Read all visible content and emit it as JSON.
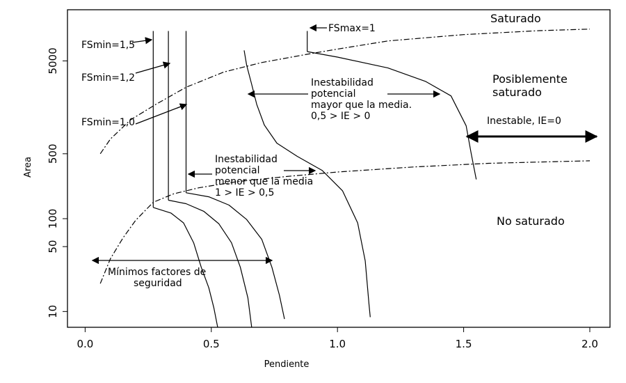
{
  "chart_data": {
    "type": "line",
    "xlabel": "Pendiente",
    "ylabel": "Area",
    "xlim": [
      -0.07,
      2.08
    ],
    "ylim_log10": [
      0.83,
      4.25
    ],
    "y_scale": "log",
    "x_ticks": [
      {
        "value": 0.0,
        "label": "0.0"
      },
      {
        "value": 0.5,
        "label": "0.5"
      },
      {
        "value": 1.0,
        "label": "1.0"
      },
      {
        "value": 1.5,
        "label": "1.5"
      },
      {
        "value": 2.0,
        "label": "2.0"
      }
    ],
    "y_ticks": [
      {
        "value": 10,
        "label": "10"
      },
      {
        "value": 50,
        "label": "50"
      },
      {
        "value": 100,
        "label": "100"
      },
      {
        "value": 500,
        "label": "500"
      },
      {
        "value": 5000,
        "label": "5000"
      }
    ],
    "grid": false,
    "series": [
      {
        "key": "upper-boundary",
        "style": "dash-dot",
        "points": [
          [
            0.06,
            500
          ],
          [
            0.1,
            720
          ],
          [
            0.18,
            1160
          ],
          [
            0.28,
            1700
          ],
          [
            0.4,
            2600
          ],
          [
            0.55,
            3800
          ],
          [
            0.7,
            4800
          ],
          [
            0.88,
            5900
          ],
          [
            1.0,
            6700
          ],
          [
            1.2,
            8200
          ],
          [
            1.5,
            9600
          ],
          [
            1.8,
            10600
          ],
          [
            2.0,
            11000
          ]
        ]
      },
      {
        "key": "lower-boundary",
        "style": "dash-dot",
        "points": [
          [
            0.06,
            20
          ],
          [
            0.1,
            37
          ],
          [
            0.15,
            62
          ],
          [
            0.2,
            96
          ],
          [
            0.27,
            150
          ],
          [
            0.35,
            185
          ],
          [
            0.45,
            215
          ],
          [
            0.6,
            250
          ],
          [
            0.8,
            285
          ],
          [
            1.0,
            318
          ],
          [
            1.3,
            360
          ],
          [
            1.6,
            395
          ],
          [
            2.0,
            420
          ]
        ]
      },
      {
        "key": "fs-1-5-curve",
        "style": "solid",
        "points": [
          [
            0.27,
            132
          ],
          [
            0.34,
            115
          ],
          [
            0.39,
            90
          ],
          [
            0.43,
            55
          ],
          [
            0.46,
            30
          ],
          [
            0.49,
            18
          ],
          [
            0.51,
            11
          ],
          [
            0.525,
            6.8
          ]
        ]
      },
      {
        "key": "fs-1-2-curve",
        "style": "solid",
        "points": [
          [
            0.33,
            158
          ],
          [
            0.4,
            145
          ],
          [
            0.47,
            120
          ],
          [
            0.53,
            88
          ],
          [
            0.58,
            55
          ],
          [
            0.615,
            30
          ],
          [
            0.645,
            14
          ],
          [
            0.66,
            6.8
          ]
        ]
      },
      {
        "key": "fs-1-0-curve",
        "style": "solid",
        "points": [
          [
            0.4,
            190
          ],
          [
            0.49,
            172
          ],
          [
            0.57,
            140
          ],
          [
            0.64,
            98
          ],
          [
            0.7,
            60
          ],
          [
            0.74,
            30
          ],
          [
            0.77,
            15
          ],
          [
            0.79,
            8.3
          ]
        ]
      },
      {
        "key": "fs-max-1-curve",
        "style": "solid",
        "points": [
          [
            0.63,
            6500
          ],
          [
            0.64,
            4500
          ],
          [
            0.66,
            2800
          ],
          [
            0.68,
            1700
          ],
          [
            0.71,
            1020
          ],
          [
            0.76,
            650
          ],
          [
            0.84,
            470
          ],
          [
            0.94,
            330
          ],
          [
            1.02,
            200
          ],
          [
            1.08,
            90
          ],
          [
            1.11,
            35
          ],
          [
            1.125,
            12
          ],
          [
            1.13,
            8.7
          ]
        ]
      },
      {
        "key": "fs-0-curve",
        "style": "solid",
        "points": [
          [
            0.88,
            6300
          ],
          [
            1.0,
            5500
          ],
          [
            1.2,
            4200
          ],
          [
            1.35,
            3000
          ],
          [
            1.45,
            2100
          ],
          [
            1.51,
            1000
          ],
          [
            1.53,
            500
          ],
          [
            1.55,
            265
          ]
        ]
      },
      {
        "key": "fs-min-1-5-vline",
        "style": "solid",
        "points": [
          [
            0.27,
            10500
          ],
          [
            0.27,
            132
          ]
        ]
      },
      {
        "key": "fs-min-1-2-vline",
        "style": "solid",
        "points": [
          [
            0.33,
            10500
          ],
          [
            0.33,
            158
          ]
        ]
      },
      {
        "key": "fs-min-1-0-vline",
        "style": "solid",
        "points": [
          [
            0.4,
            10500
          ],
          [
            0.4,
            190
          ]
        ]
      },
      {
        "key": "fs-max-1-vline",
        "style": "solid",
        "points": [
          [
            0.88,
            10500
          ],
          [
            0.88,
            6300
          ]
        ]
      }
    ],
    "annotations": {
      "saturado": "Saturado",
      "posiblemente_1": "Posiblemente",
      "posiblemente_2": "saturado",
      "no_saturado": "No saturado",
      "inestable": "Inestable, IE=0",
      "fs_max": "FSmax=1",
      "fs_min_15": "FSmin=1,5",
      "fs_min_12": "FSmin=1,2",
      "fs_min_10": "FSmin=1,0",
      "inest_mayor_1": "Inestabilidad",
      "inest_mayor_2": "potencial",
      "inest_mayor_3": "mayor que la media.",
      "inest_mayor_4": "0,5 > IE > 0",
      "inest_menor_1": "Inestabilidad",
      "inest_menor_2": "potencial",
      "inest_menor_3": "menor que la media",
      "inest_menor_4": "1 > IE > 0,5",
      "minimos_1": "Mínimos factores de",
      "minimos_2": "seguridad"
    }
  }
}
